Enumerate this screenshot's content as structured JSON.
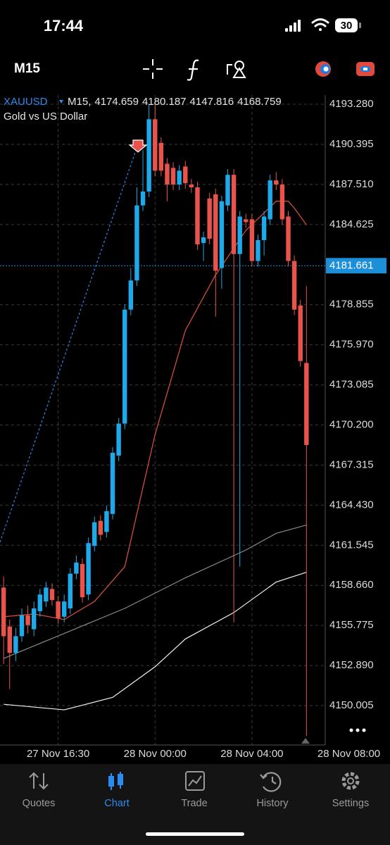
{
  "status_bar": {
    "time": "17:44",
    "battery": "30"
  },
  "toolbar": {
    "timeframe": "M15"
  },
  "chart_data": {
    "type": "candlestick",
    "symbol": "XAUUSD",
    "description": "Gold vs US Dollar",
    "x": [
      0,
      1,
      2,
      3,
      4,
      5,
      6,
      7,
      8,
      9,
      10,
      11,
      12,
      13,
      14,
      15,
      16,
      17,
      18,
      19,
      20,
      21,
      22,
      23,
      24,
      25,
      26,
      27,
      28,
      29,
      30,
      31,
      32,
      33,
      34,
      35,
      36,
      37,
      38,
      39,
      40,
      41,
      42,
      43,
      44,
      45,
      46,
      47,
      48,
      49,
      50
    ],
    "open": [
      4158.5,
      4155.7,
      4153.8,
      4155.0,
      4156.5,
      4155.5,
      4156.8,
      4157.5,
      4158.4,
      4157.5,
      4156.4,
      4157.0,
      4159.5,
      4160.2,
      4158.0,
      4161.5,
      4163.3,
      4162.5,
      4163.8,
      4168.0,
      4170.3,
      4178.5,
      4180.6,
      4186.0,
      4187.0,
      4192.2,
      4190.5,
      4189.0,
      4188.7,
      4187.5,
      4188.8,
      4187.5,
      4187.3,
      4183.3,
      4186.5,
      4186.8,
      4181.5,
      4186.0,
      4188.2,
      4182.5,
      4185.0,
      4185.0,
      4182.0,
      4183.5,
      4185.0,
      4187.8,
      4187.5,
      4185.2,
      4182.0,
      4178.8,
      4174.659
    ],
    "high": [
      4159.3,
      4156.2,
      4155.6,
      4157.0,
      4157.2,
      4157.5,
      4158.4,
      4158.9,
      4158.8,
      4157.9,
      4158.0,
      4159.9,
      4160.8,
      4160.6,
      4162.1,
      4163.6,
      4163.7,
      4164.4,
      4168.6,
      4170.7,
      4178.9,
      4181.5,
      4187.3,
      4190.0,
      4193.3,
      4193.3,
      4190.9,
      4189.4,
      4189.1,
      4188.9,
      4189.2,
      4187.9,
      4187.7,
      4184.1,
      4186.9,
      4187.2,
      4186.7,
      4188.6,
      4188.6,
      4185.6,
      4185.4,
      4185.4,
      4183.9,
      4185.6,
      4188.2,
      4188.4,
      4187.9,
      4185.6,
      4182.4,
      4179.2,
      4180.187
    ],
    "low": [
      4153.0,
      4151.2,
      4153.2,
      4154.6,
      4155.2,
      4155.0,
      4156.4,
      4157.1,
      4157.2,
      4155.9,
      4156.0,
      4156.6,
      4159.1,
      4157.4,
      4157.6,
      4161.1,
      4161.9,
      4162.1,
      4163.4,
      4167.6,
      4169.9,
      4178.1,
      4180.2,
      4185.6,
      4186.6,
      4188.1,
      4188.1,
      4186.3,
      4187.1,
      4187.1,
      4187.2,
      4186.9,
      4182.8,
      4182.0,
      4183.2,
      4178.0,
      4180.0,
      4185.6,
      4156.0,
      4160.0,
      4184.4,
      4181.6,
      4181.6,
      4182.4,
      4184.6,
      4187.1,
      4184.6,
      4181.6,
      4178.1,
      4174.4,
      4147.816
    ],
    "close": [
      4155.0,
      4153.8,
      4155.0,
      4156.5,
      4155.8,
      4157.0,
      4158.0,
      4158.5,
      4157.6,
      4156.3,
      4157.5,
      4159.5,
      4160.3,
      4157.8,
      4161.7,
      4163.2,
      4162.3,
      4164.0,
      4168.2,
      4170.3,
      4178.5,
      4180.6,
      4186.0,
      4187.0,
      4192.2,
      4188.5,
      4188.5,
      4187.5,
      4187.5,
      4188.5,
      4187.6,
      4187.3,
      4183.2,
      4183.7,
      4183.6,
      4181.3,
      4186.3,
      4188.2,
      4182.5,
      4185.2,
      4184.8,
      4182.0,
      4183.5,
      4185.2,
      4187.8,
      4187.5,
      4185.0,
      4182.0,
      4178.5,
      4174.8,
      4168.759
    ],
    "up_color": "#1ea9ea",
    "down_color": "#e8544c",
    "xlim": [
      -0.6,
      53.1
    ],
    "ylim": [
      4147.17,
      4193.94
    ],
    "xticks": [
      {
        "value": 9,
        "label": "27 Nov 16:30"
      },
      {
        "value": 25,
        "label": "28 Nov 00:00"
      },
      {
        "value": 41,
        "label": "28 Nov 04:00"
      },
      {
        "value": 57,
        "label": "28 Nov 08:00"
      }
    ],
    "yticks": [
      {
        "value": 4193.28,
        "label": "4193.280"
      },
      4190.395,
      {
        "value": 4187.51,
        "label": "4187.510"
      },
      4184.625,
      4178.855,
      {
        "value": 4175.97,
        "label": "4175.970"
      },
      4173.085,
      {
        "value": 4170.2,
        "label": "4170.200"
      },
      4167.315,
      {
        "value": 4164.43,
        "label": "4164.430"
      },
      4161.545,
      {
        "value": 4158.66,
        "label": "4158.660"
      },
      4155.775,
      {
        "value": 4152.89,
        "label": "4152.890"
      },
      4150.005
    ],
    "grid": true,
    "current_price": 4181.661,
    "current_price_color": "#1c8fd8",
    "overlays": [
      {
        "color": "#e0523d",
        "x": [
          0,
          5,
          10,
          15,
          20,
          25,
          30,
          35,
          40,
          45,
          47,
          48,
          50
        ],
        "values": [
          4156.4,
          4156.6,
          4156.2,
          4157.5,
          4160.0,
          4169.5,
          4177.0,
          4181.0,
          4184.2,
          4186.3,
          4186.3,
          4185.8,
          4184.6
        ]
      },
      {
        "color": "#8a8a8a",
        "x": [
          0,
          10,
          20,
          30,
          40,
          45,
          50
        ],
        "values": [
          4153.4,
          4155.2,
          4157.0,
          4159.2,
          4161.2,
          4162.4,
          4163.0
        ]
      },
      {
        "color": "#f2f2f2",
        "x": [
          0,
          10,
          18,
          25,
          30,
          38,
          45,
          50
        ],
        "values": [
          4150.1,
          4149.7,
          4150.6,
          4152.8,
          4154.8,
          4156.7,
          4158.9,
          4159.6
        ]
      }
    ]
  },
  "tab_bar": {
    "tabs": [
      "Quotes",
      "Chart",
      "Trade",
      "History",
      "Settings"
    ],
    "active": 1,
    "active_color": "#2a8cf0"
  }
}
